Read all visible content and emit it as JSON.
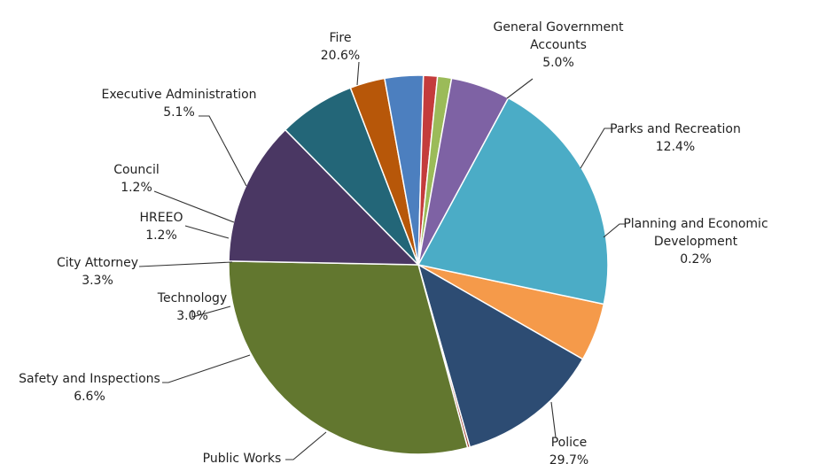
{
  "chart_data": {
    "type": "pie",
    "title": "",
    "slices": [
      {
        "label": [
          "General Government",
          "Accounts"
        ],
        "value": 5.0,
        "display": "5.0%",
        "color": "#f59a4a"
      },
      {
        "label": [
          "Parks and Recreation"
        ],
        "value": 12.4,
        "display": "12.4%",
        "color": "#2d4c73"
      },
      {
        "label": [
          "Planning and Economic",
          "Development"
        ],
        "value": 0.2,
        "display": "0.2%",
        "color": "#9a3b2e"
      },
      {
        "label": [
          "Police"
        ],
        "value": 29.7,
        "display": "29.7%",
        "color": "#62772f"
      },
      {
        "label": [
          "Public Works"
        ],
        "value": 12.4,
        "display": "",
        "color": "#4a3763"
      },
      {
        "label": [
          "Safety and Inspections"
        ],
        "value": 6.6,
        "display": "6.6%",
        "color": "#236678"
      },
      {
        "label": [
          "Technology"
        ],
        "value": 3.0,
        "display": "3.0%",
        "color": "#b75709"
      },
      {
        "label": [
          "City Attorney"
        ],
        "value": 3.3,
        "display": "3.3%",
        "color": "#4c7fbf"
      },
      {
        "label": [
          "HREEO"
        ],
        "value": 1.2,
        "display": "1.2%",
        "color": "#c43c3c"
      },
      {
        "label": [
          "Council"
        ],
        "value": 1.2,
        "display": "1.2%",
        "color": "#9bbb59"
      },
      {
        "label": [
          "Executive Administration"
        ],
        "value": 5.1,
        "display": "5.1%",
        "color": "#7e62a4"
      },
      {
        "label": [
          "Fire"
        ],
        "value": 20.6,
        "display": "20.6%",
        "color": "#4bacc6"
      }
    ]
  }
}
